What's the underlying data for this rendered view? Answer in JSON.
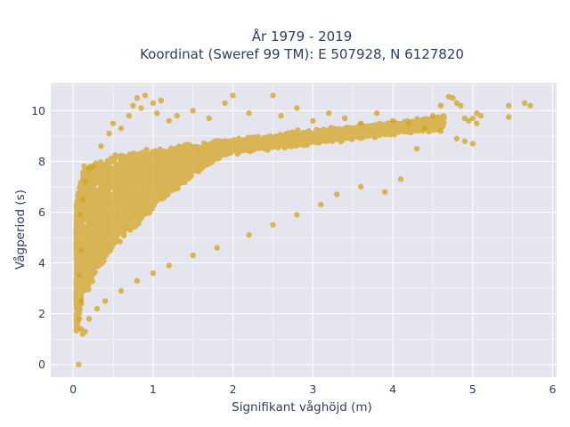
{
  "chart_data": {
    "type": "scatter",
    "title_line1": "År 1979 - 2019",
    "title_line2": "Koordinat (Sweref 99 TM): E 507928, N 6127820",
    "xlabel": "Signifikant våghöjd (m)",
    "ylabel": "Vågperiod (s)",
    "xlim": [
      -0.28,
      6.05
    ],
    "ylim": [
      -0.5,
      11.1
    ],
    "xticks": [
      0,
      1,
      2,
      3,
      4,
      5,
      6
    ],
    "yticks": [
      0,
      2,
      4,
      6,
      8,
      10
    ],
    "grid": true,
    "marker_color": "#d4a420",
    "marker_opacity": 0.75,
    "series": [
      {
        "points": [
          [
            0.07,
            0.0
          ],
          [
            0.08,
            1.8
          ],
          [
            0.1,
            1.4
          ],
          [
            0.12,
            1.2
          ],
          [
            0.15,
            1.3
          ],
          [
            0.1,
            2.5
          ],
          [
            0.08,
            3.5
          ],
          [
            0.1,
            4.5
          ],
          [
            0.09,
            5.9
          ],
          [
            0.12,
            6.5
          ],
          [
            0.15,
            7.2
          ],
          [
            0.2,
            7.7
          ],
          [
            0.25,
            7.8
          ],
          [
            0.35,
            8.6
          ],
          [
            0.45,
            9.1
          ],
          [
            0.5,
            9.5
          ],
          [
            0.6,
            9.3
          ],
          [
            0.7,
            9.8
          ],
          [
            0.75,
            10.2
          ],
          [
            0.8,
            10.5
          ],
          [
            0.85,
            10.1
          ],
          [
            0.9,
            10.6
          ],
          [
            1.0,
            10.3
          ],
          [
            1.05,
            9.9
          ],
          [
            1.1,
            10.4
          ],
          [
            1.2,
            9.6
          ],
          [
            1.3,
            9.8
          ],
          [
            1.5,
            10.0
          ],
          [
            1.7,
            9.7
          ],
          [
            1.9,
            10.3
          ],
          [
            2.0,
            10.6
          ],
          [
            2.2,
            9.9
          ],
          [
            2.5,
            10.6
          ],
          [
            2.6,
            9.8
          ],
          [
            2.8,
            10.1
          ],
          [
            3.0,
            9.6
          ],
          [
            3.2,
            9.9
          ],
          [
            3.4,
            9.7
          ],
          [
            3.6,
            9.5
          ],
          [
            3.8,
            9.9
          ],
          [
            4.0,
            9.6
          ],
          [
            4.2,
            9.5
          ],
          [
            4.4,
            9.3
          ],
          [
            4.5,
            9.8
          ],
          [
            4.6,
            10.2
          ],
          [
            4.7,
            10.55
          ],
          [
            4.75,
            10.5
          ],
          [
            4.8,
            10.3
          ],
          [
            4.85,
            10.2
          ],
          [
            4.9,
            9.7
          ],
          [
            4.95,
            9.6
          ],
          [
            5.0,
            9.7
          ],
          [
            5.05,
            9.9
          ],
          [
            5.1,
            9.8
          ],
          [
            5.05,
            9.5
          ],
          [
            4.8,
            8.9
          ],
          [
            4.9,
            8.8
          ],
          [
            5.0,
            8.7
          ],
          [
            5.45,
            9.75
          ],
          [
            5.45,
            10.2
          ],
          [
            5.65,
            10.3
          ],
          [
            5.72,
            10.2
          ],
          [
            4.6,
            9.2
          ],
          [
            4.3,
            8.5
          ],
          [
            4.1,
            7.3
          ],
          [
            3.9,
            6.8
          ],
          [
            3.6,
            7.0
          ],
          [
            3.3,
            6.7
          ],
          [
            3.1,
            6.3
          ],
          [
            2.8,
            5.9
          ],
          [
            2.5,
            5.5
          ],
          [
            2.2,
            5.1
          ],
          [
            1.8,
            4.6
          ],
          [
            1.5,
            4.3
          ],
          [
            1.2,
            3.9
          ],
          [
            1.0,
            3.6
          ],
          [
            0.8,
            3.3
          ],
          [
            0.6,
            2.9
          ],
          [
            0.4,
            2.5
          ],
          [
            0.3,
            2.2
          ],
          [
            0.2,
            1.8
          ]
        ]
      }
    ]
  }
}
